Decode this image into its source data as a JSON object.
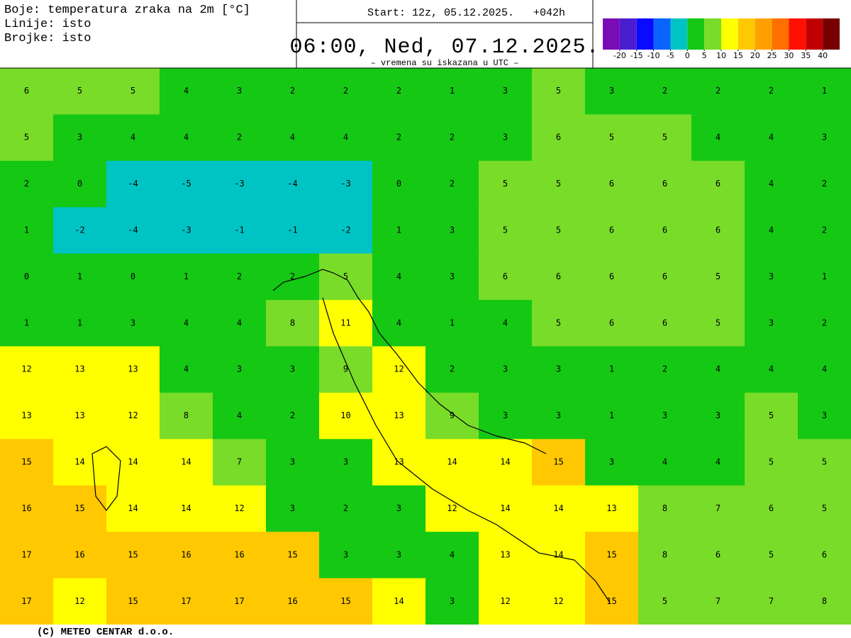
{
  "header": {
    "legend_text": [
      "Boje: temperatura zraka na 2m [°C]",
      "Linije: isto",
      "Brojke: isto"
    ],
    "start": "Start: 12z, 05.12.2025.   +042h",
    "valid_time": "06:00, Ned, 07.12.2025.",
    "note": "– vremena su iskazana u UTC –"
  },
  "color_scale": {
    "ticks": [
      -20,
      -15,
      -10,
      -5,
      0,
      5,
      10,
      15,
      20,
      25,
      30,
      35,
      40
    ],
    "colors": [
      "#7a0cb8",
      "#4a1ed0",
      "#0a0aff",
      "#0a64ff",
      "#00c4c4",
      "#14c814",
      "#78dc28",
      "#ffff00",
      "#ffc800",
      "#ffa000",
      "#ff7000",
      "#ff1000",
      "#c00000",
      "#780000"
    ]
  },
  "map": {
    "rows": [
      [
        6,
        5,
        5,
        4,
        3,
        2,
        2,
        2,
        1,
        3,
        5,
        3,
        2,
        2,
        2,
        1
      ],
      [
        5,
        3,
        4,
        4,
        2,
        4,
        4,
        2,
        2,
        3,
        6,
        5,
        5,
        4,
        4,
        3
      ],
      [
        2,
        0,
        -4,
        -5,
        -3,
        -4,
        -3,
        0,
        2,
        5,
        5,
        6,
        6,
        6,
        4,
        2
      ],
      [
        1,
        -2,
        -4,
        -3,
        -1,
        -1,
        -2,
        1,
        3,
        5,
        5,
        6,
        6,
        6,
        4,
        2
      ],
      [
        0,
        1,
        0,
        1,
        2,
        2,
        5,
        4,
        3,
        6,
        6,
        6,
        6,
        5,
        3,
        1
      ],
      [
        1,
        1,
        3,
        4,
        4,
        8,
        11,
        4,
        1,
        4,
        5,
        6,
        6,
        5,
        3,
        2
      ],
      [
        12,
        13,
        13,
        4,
        3,
        3,
        9,
        12,
        2,
        3,
        3,
        1,
        2,
        4,
        4,
        4
      ],
      [
        13,
        13,
        12,
        8,
        4,
        2,
        10,
        13,
        9,
        3,
        3,
        1,
        3,
        3,
        5,
        3
      ],
      [
        15,
        14,
        14,
        14,
        7,
        3,
        3,
        13,
        14,
        14,
        15,
        3,
        4,
        4,
        5,
        5
      ],
      [
        16,
        15,
        14,
        14,
        12,
        3,
        2,
        3,
        12,
        14,
        14,
        13,
        8,
        7,
        6,
        5
      ],
      [
        17,
        16,
        15,
        16,
        16,
        15,
        3,
        3,
        4,
        13,
        14,
        15,
        8,
        6,
        5,
        6
      ],
      [
        17,
        12,
        15,
        17,
        17,
        16,
        15,
        14,
        3,
        12,
        12,
        15,
        5,
        7,
        7,
        8
      ]
    ]
  },
  "footer": "(C) METEO CENTAR d.o.o."
}
